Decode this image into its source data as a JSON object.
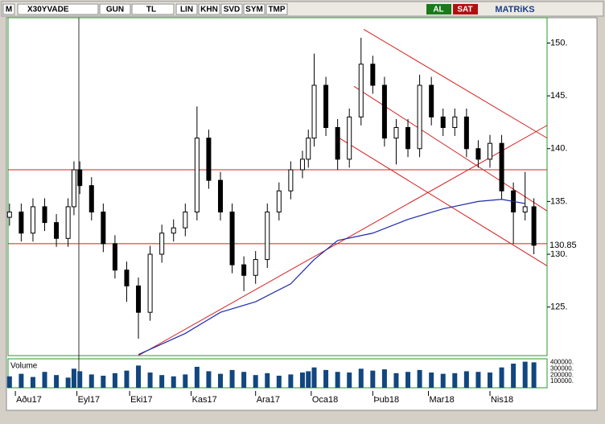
{
  "toolbar": {
    "menu": "M",
    "symbol": "X30YVADE",
    "period": "GUN",
    "currency": "TL",
    "buttons": [
      "LIN",
      "KHN",
      "SVD",
      "SYM",
      "TMP"
    ],
    "buy": "AL",
    "sell": "SAT",
    "brand": "MATRiKS"
  },
  "chart_data": {
    "type": "candlestick",
    "x": [
      0,
      4,
      8,
      12,
      16,
      20,
      22,
      24,
      28,
      32,
      36,
      40,
      44,
      48,
      52,
      56,
      60,
      64,
      68,
      72,
      76,
      80,
      84,
      88,
      92,
      96,
      100,
      102,
      104,
      108,
      112,
      116,
      120,
      124,
      128,
      132,
      136,
      140,
      144,
      148,
      152,
      156,
      160,
      164,
      168,
      172,
      176,
      179
    ],
    "open": [
      133.5,
      134,
      132,
      134.5,
      133,
      131.5,
      134.5,
      138,
      136.5,
      134,
      131,
      128.5,
      127,
      124.5,
      130,
      132,
      132.5,
      134,
      141,
      137,
      134,
      129,
      128,
      129.5,
      134,
      136,
      138,
      139,
      141,
      146,
      142,
      139,
      143,
      148,
      146,
      141,
      142,
      140,
      146,
      143,
      142,
      143,
      140,
      139,
      140.5,
      136,
      134,
      134.5
    ],
    "high": [
      134.8,
      134.8,
      135.3,
      135.3,
      133.8,
      135.3,
      138.8,
      138.8,
      137.3,
      134.8,
      131.8,
      129.3,
      127.8,
      130.8,
      132.8,
      133.3,
      134.8,
      144,
      141.8,
      137.8,
      134.8,
      129.8,
      130.3,
      134.8,
      136.8,
      138.8,
      139.8,
      141.8,
      149,
      146.8,
      142.8,
      143.8,
      150.5,
      148.8,
      146.8,
      142.8,
      142.8,
      147,
      146.8,
      143.8,
      143.8,
      143.8,
      140.8,
      141.3,
      141.3,
      136.8,
      137.8,
      135.3
    ],
    "low": [
      132.7,
      131.2,
      131.2,
      132.2,
      130.7,
      130.7,
      133.7,
      135.7,
      133.2,
      130.2,
      127.7,
      125.5,
      122,
      123.7,
      129.2,
      131.2,
      131.7,
      133.2,
      136.2,
      133.2,
      128.2,
      126.5,
      127.2,
      128.7,
      133.2,
      135.2,
      137.2,
      138.2,
      140.2,
      141.2,
      138,
      138.2,
      142.2,
      145.2,
      140.2,
      138.5,
      139.2,
      139.2,
      142.2,
      141.2,
      141.2,
      139.2,
      138.2,
      138.2,
      135.2,
      131,
      133.2,
      130
    ],
    "close": [
      134,
      132,
      134.5,
      133,
      131.5,
      134.5,
      138,
      136.5,
      134,
      131,
      128.5,
      127,
      124.5,
      130,
      132,
      132.5,
      134,
      141,
      137,
      134,
      129,
      128,
      129.5,
      134,
      136,
      138,
      139,
      141,
      146,
      142,
      139,
      143,
      148,
      146,
      141,
      142,
      140,
      146,
      143,
      142,
      143,
      140,
      139,
      140.5,
      136,
      134,
      134.5,
      130.85
    ],
    "volume_label": "Volume",
    "volume": [
      180000,
      220000,
      170000,
      250000,
      200000,
      160000,
      300000,
      260000,
      210000,
      190000,
      230000,
      270000,
      350000,
      240000,
      200000,
      180000,
      210000,
      330000,
      260000,
      220000,
      280000,
      250000,
      200000,
      230000,
      190000,
      210000,
      240000,
      260000,
      320000,
      280000,
      250000,
      240000,
      300000,
      270000,
      290000,
      230000,
      250000,
      280000,
      240000,
      220000,
      230000,
      260000,
      250000,
      240000,
      320000,
      380000,
      410000,
      400000
    ],
    "volume_color": "#12467f",
    "volume_ylim": [
      0,
      430000
    ],
    "volume_ticks": [
      {
        "value": 400000,
        "label": "400000."
      },
      {
        "value": 300000,
        "label": "300000."
      },
      {
        "value": 200000,
        "label": "200000."
      },
      {
        "value": 100000,
        "label": "100000."
      }
    ],
    "ma": {
      "color": "#1c2aa8",
      "x": [
        44,
        60,
        72,
        84,
        96,
        104,
        112,
        124,
        136,
        148,
        160,
        168,
        176
      ],
      "values": [
        120.5,
        122.5,
        124.5,
        125.5,
        127.2,
        129.5,
        131.3,
        132,
        133.3,
        134.3,
        135,
        135.2,
        134.8
      ]
    },
    "hlines": [
      138,
      131
    ],
    "trend_color": "#d42020",
    "trendlines": [
      {
        "x": [
          44,
          183.5
        ],
        "values": [
          120.4,
          142.2
        ]
      },
      {
        "x": [
          120.9,
          183.5
        ],
        "values": [
          151.3,
          141
        ]
      },
      {
        "x": [
          117.6,
          183.5
        ],
        "values": [
          145.9,
          134.1
        ]
      },
      {
        "x": [
          112,
          183.5
        ],
        "values": [
          141.1,
          128.9
        ]
      }
    ],
    "last_price": 130.85,
    "xlim": [
      -0.5,
      183.5
    ],
    "ylim": [
      120.4,
      152.4
    ],
    "yticks": [
      {
        "value": 125,
        "label": "125."
      },
      {
        "value": 130,
        "label": "130."
      },
      {
        "value": 135,
        "label": "135."
      },
      {
        "value": 140,
        "label": "140."
      },
      {
        "value": 145,
        "label": "145."
      },
      {
        "value": 150,
        "label": "150."
      }
    ],
    "xticks": [
      {
        "value": 2,
        "label": "Aðu17"
      },
      {
        "value": 23,
        "label": "Eyl17"
      },
      {
        "value": 41,
        "label": "Eki17"
      },
      {
        "value": 62,
        "label": "Kas17"
      },
      {
        "value": 84,
        "label": "Ara17"
      },
      {
        "value": 103,
        "label": "Oca18"
      },
      {
        "value": 124,
        "label": "Þub18"
      },
      {
        "value": 143,
        "label": "Mar18"
      },
      {
        "value": 164,
        "label": "Nis18"
      }
    ]
  }
}
